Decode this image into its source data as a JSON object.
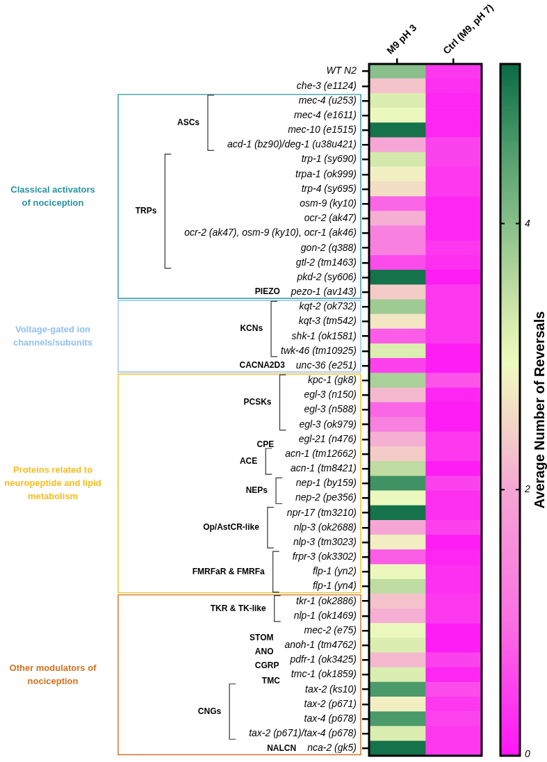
{
  "chart_data": {
    "type": "heatmap",
    "categories": [
      "M9 pH 3",
      "Ctrl (M9, pH 7)"
    ],
    "y_categories": [
      "WT N2",
      "che-3 (e1124)",
      "mec-4 (u253)",
      "mec-4 (e1611)",
      "mec-10 (e1515)",
      "acd-1 (bz90)/deg-1 (u38u421)",
      "trp-1 (sy690)",
      "trpa-1 (ok999)",
      "trp-4 (sy695)",
      "osm-9 (ky10)",
      "ocr-2 (ak47)",
      "ocr-2 (ak47), osm-9 (ky10), ocr-1 (ak46)",
      "gon-2 (q388)",
      "gtl-2 (tm1463)",
      "pkd-2 (sy606)",
      "pezo-1 (av143)",
      "kqt-2 (ok732)",
      "kqt-3 (tm542)",
      "shk-1 (ok1581)",
      "twk-46 (tm10925)",
      "unc-36 (e251)",
      "kpc-1 (gk8)",
      "egl-3 (n150)",
      "egl-3 (n588)",
      "egl-3 (ok979)",
      "egl-21 (n476)",
      "acn-1 (tm12662)",
      "acn-1 (tm8421)",
      "nep-1 (by159)",
      "nep-2 (pe356)",
      "npr-17 (tm3210)",
      "nlp-3 (ok2688)",
      "nlp-3 (tm3023)",
      "frpr-3 (ok3302)",
      "flp-1 (yn2)",
      "flp-1 (yn4)",
      "tkr-1 (ok2886)",
      "nlp-1 (ok1469)",
      "mec-2 (e75)",
      "anoh-1 (tm4762)",
      "pdfr-1 (ok3425)",
      "tmc-1 (ok1859)",
      "tax-2 (ks10)",
      "tax-2 (p671)",
      "tax-4 (p678)",
      "tax-2 (p671)/tax-4 (p678)",
      "nca-2 (gk5)"
    ],
    "cells": [
      [
        4.0,
        0.4
      ],
      [
        2.3,
        0.3
      ],
      [
        3.2,
        0.2
      ],
      [
        3.0,
        0.2
      ],
      [
        5.1,
        0.2
      ],
      [
        2.0,
        0.5
      ],
      [
        3.3,
        0.5
      ],
      [
        2.8,
        0.4
      ],
      [
        2.6,
        0.4
      ],
      [
        0.9,
        0.2
      ],
      [
        2.1,
        0.2
      ],
      [
        1.3,
        0.2
      ],
      [
        1.3,
        0.4
      ],
      [
        0.6,
        0.3
      ],
      [
        5.1,
        0.1
      ],
      [
        2.4,
        0.4
      ],
      [
        3.8,
        0.4
      ],
      [
        2.7,
        0.4
      ],
      [
        0.8,
        0.4
      ],
      [
        3.2,
        0.1
      ],
      [
        0.5,
        0.1
      ],
      [
        3.7,
        0.7
      ],
      [
        2.2,
        0.2
      ],
      [
        0.9,
        0.1
      ],
      [
        1.3,
        0.1
      ],
      [
        2.1,
        0.4
      ],
      [
        2.4,
        0.4
      ],
      [
        3.5,
        0.1
      ],
      [
        4.7,
        0.5
      ],
      [
        3.0,
        0.3
      ],
      [
        5.1,
        0.3
      ],
      [
        2.0,
        0.5
      ],
      [
        2.8,
        0.1
      ],
      [
        0.8,
        0.2
      ],
      [
        3.0,
        0.3
      ],
      [
        3.5,
        0.3
      ],
      [
        2.3,
        0.4
      ],
      [
        2.1,
        0.4
      ],
      [
        3.0,
        0.1
      ],
      [
        3.2,
        0.1
      ],
      [
        2.2,
        0.5
      ],
      [
        3.2,
        0.2
      ],
      [
        4.6,
        0.6
      ],
      [
        2.8,
        0.4
      ],
      [
        4.6,
        0.5
      ],
      [
        3.2,
        0.4
      ],
      [
        5.1,
        0.4
      ]
    ],
    "clim": [
      0,
      5.2
    ],
    "cticks": [
      0,
      2,
      4
    ],
    "clabel": "Average Number of Reversals",
    "annotations": [
      "Classical activators of nociception",
      "Voltage-gated ion channels/subunits",
      "Proteins related to neuropeptide and lipid metabolism",
      "Other modulators of nociception",
      "ASCs",
      "TRPs",
      "PIEZO",
      "KCNs",
      "CACNA2D3",
      "PCSKs",
      "CPE",
      "ACE",
      "NEPs",
      "Op/AstCR-like",
      "FMRFaR & FMRFa",
      "TKR & TK-like",
      "STOM",
      "ANO",
      "CGRP",
      "TMC",
      "CNGs",
      "NALCN"
    ]
  }
}
